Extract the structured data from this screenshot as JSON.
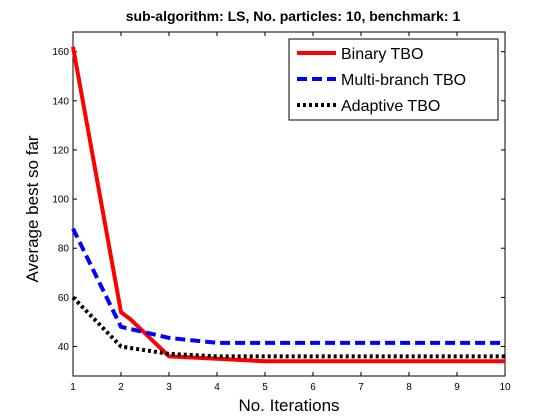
{
  "chart_data": {
    "type": "line",
    "title": "sub-algorithm: LS, No. particles: 10, benchmark: 1",
    "xlabel": "No. Iterations",
    "ylabel": "Average best so far",
    "x": [
      1,
      2,
      3,
      4,
      5,
      6,
      7,
      8,
      9,
      10
    ],
    "xlim": [
      1,
      10
    ],
    "ylim": [
      28,
      168
    ],
    "xticks": [
      1,
      2,
      3,
      4,
      5,
      6,
      7,
      8,
      9,
      10
    ],
    "yticks": [
      40,
      60,
      80,
      100,
      120,
      140,
      160
    ],
    "grid": false,
    "legend_position": "top-right",
    "series": [
      {
        "name": "Binary TBO",
        "color": "#ff0000",
        "style": "solid",
        "x": [
          1,
          2,
          2.2,
          3,
          4,
          5,
          6,
          7,
          8,
          9,
          10
        ],
        "values": [
          162,
          54,
          51,
          36,
          35,
          34,
          34,
          34,
          34,
          34,
          34
        ]
      },
      {
        "name": "Multi-branch TBO",
        "color": "#0000ff",
        "style": "dashed",
        "x": [
          1,
          2,
          3,
          4,
          5,
          6,
          7,
          8,
          9,
          10
        ],
        "values": [
          88,
          48,
          43.5,
          41.5,
          41.5,
          41.5,
          41.5,
          41.5,
          41.5,
          41.5
        ]
      },
      {
        "name": "Adaptive TBO",
        "color": "#000000",
        "style": "dotted",
        "x": [
          1,
          2,
          3,
          4,
          5,
          6,
          7,
          8,
          9,
          10
        ],
        "values": [
          60,
          40,
          37,
          36,
          36,
          36,
          36,
          36,
          36,
          36
        ]
      }
    ]
  }
}
